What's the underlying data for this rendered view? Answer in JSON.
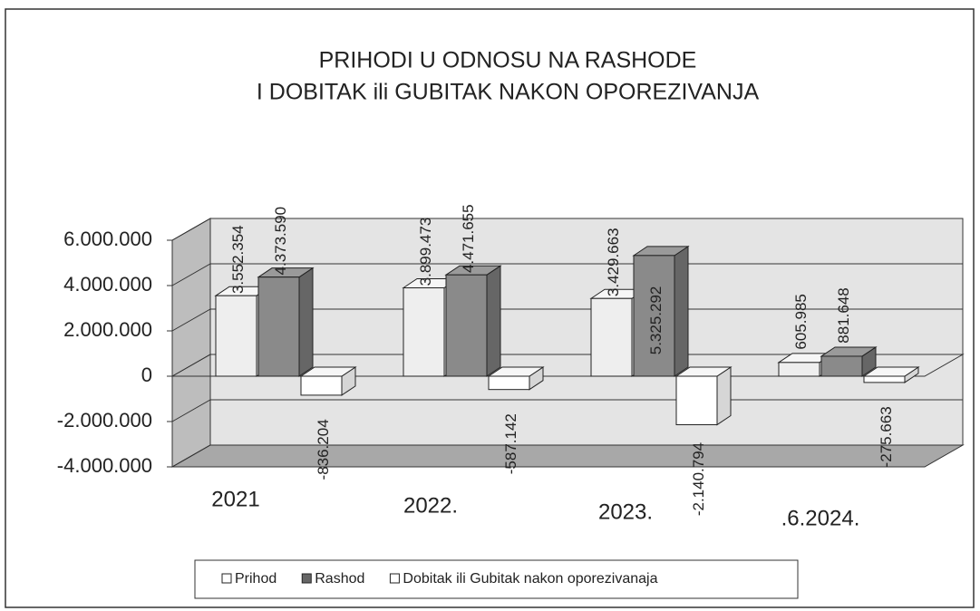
{
  "chart_data": {
    "type": "bar3d",
    "title": [
      "PRIHODI U ODNOSU NA RASHODE",
      "I DOBITAK ili GUBITAK NAKON OPOREZIVANJA"
    ],
    "categories": [
      "2021",
      "2022.",
      "2023.",
      ".6.2024."
    ],
    "series": [
      {
        "name": "Prihod",
        "color": "#eeeeee",
        "values": [
          3552354,
          3899473,
          3429663,
          605985
        ],
        "value_labels": [
          "3.552.354",
          "3.899.473",
          "3.429.663",
          "605.985"
        ]
      },
      {
        "name": "Rashod",
        "color": "#8a8a8a",
        "values": [
          4373590,
          4471655,
          5325292,
          881648
        ],
        "value_labels": [
          "4.373.590",
          "4.471.655",
          "5.325.292",
          "881.648"
        ]
      },
      {
        "name": "Dobitak ili Gubitak nakon oporezivanaja",
        "color": "#ffffff",
        "values": [
          -836204,
          -587142,
          -2140794,
          -275663
        ],
        "value_labels": [
          "-836.204",
          "-587.142",
          "-2.140.794",
          "-275.663"
        ]
      }
    ],
    "ylim": [
      -4000000,
      6000000
    ],
    "yticks": [
      {
        "value": -4000000,
        "label": "-4.000.000"
      },
      {
        "value": -2000000,
        "label": "-2.000.000"
      },
      0,
      {
        "value": 2000000,
        "label": "2.000.000"
      },
      {
        "value": 4000000,
        "label": "4.000.000"
      },
      {
        "value": 6000000,
        "label": "6.000.000"
      }
    ],
    "grid": true,
    "legend": "bottom"
  }
}
